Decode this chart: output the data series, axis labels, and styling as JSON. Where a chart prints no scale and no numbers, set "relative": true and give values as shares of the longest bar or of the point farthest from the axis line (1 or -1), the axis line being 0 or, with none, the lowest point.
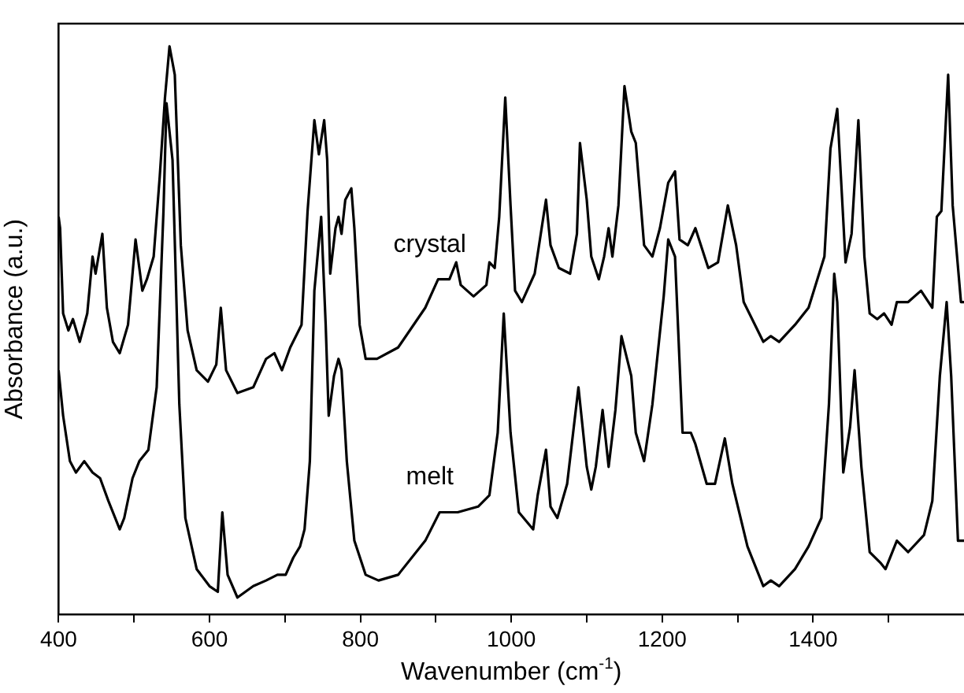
{
  "chart_data": {
    "type": "line",
    "relative": true,
    "xlabel": "Wavenumber (cm$^{-1}$)",
    "ylabel": "Absorbance (a.u.)",
    "xlim": [
      400,
      1600
    ],
    "xticks": [
      400,
      {
        "value": 500,
        "label": null
      },
      600,
      {
        "value": 700,
        "label": null
      },
      800,
      {
        "value": 900,
        "label": null
      },
      1000,
      {
        "value": 1100,
        "label": null
      },
      1200,
      {
        "value": 1300,
        "label": null
      },
      1400,
      {
        "value": 1500,
        "label": null
      }
    ],
    "grid": false,
    "legend": false,
    "marker": "none",
    "line_style": "solid",
    "series": [
      {
        "name": "crystal",
        "color": "#000000",
        "x": [
          400,
          402,
          406,
          413,
          419,
          428,
          438,
          445,
          449,
          458,
          464,
          472,
          481,
          492,
          502,
          511,
          517,
          526,
          534,
          541,
          547,
          554,
          562,
          571,
          583,
          598,
          609,
          615,
          622,
          637,
          658,
          675,
          686,
          696,
          707,
          722,
          730,
          739,
          745,
          752,
          756,
          760,
          767,
          771,
          775,
          780,
          788,
          792,
          799,
          807,
          822,
          850,
          886,
          903,
          912,
          918,
          927,
          933,
          950,
          967,
          971,
          978,
          984,
          992,
          999,
          1005,
          1014,
          1031,
          1046,
          1052,
          1063,
          1078,
          1087,
          1091,
          1100,
          1106,
          1116,
          1123,
          1129,
          1134,
          1142,
          1150,
          1159,
          1165,
          1176,
          1187,
          1197,
          1208,
          1217,
          1223,
          1234,
          1244,
          1261,
          1274,
          1287,
          1298,
          1308,
          1334,
          1344,
          1355,
          1376,
          1394,
          1415,
          1423,
          1432,
          1443,
          1451,
          1460,
          1468,
          1475,
          1485,
          1494,
          1504,
          1511,
          1526,
          1543,
          1558,
          1564,
          1570,
          1579,
          1585,
          1596,
          1600
        ],
        "values": [
          0.7,
          0.68,
          0.53,
          0.5,
          0.52,
          0.48,
          0.53,
          0.63,
          0.6,
          0.67,
          0.54,
          0.48,
          0.46,
          0.51,
          0.66,
          0.57,
          0.59,
          0.63,
          0.77,
          0.91,
          1,
          0.95,
          0.65,
          0.5,
          0.43,
          0.41,
          0.44,
          0.54,
          0.43,
          0.39,
          0.4,
          0.45,
          0.46,
          0.43,
          0.47,
          0.51,
          0.71,
          0.87,
          0.81,
          0.87,
          0.8,
          0.6,
          0.68,
          0.7,
          0.67,
          0.73,
          0.75,
          0.68,
          0.51,
          0.45,
          0.45,
          0.47,
          0.54,
          0.59,
          0.59,
          0.59,
          0.62,
          0.58,
          0.56,
          0.58,
          0.62,
          0.61,
          0.7,
          0.91,
          0.72,
          0.57,
          0.55,
          0.6,
          0.73,
          0.65,
          0.61,
          0.6,
          0.67,
          0.83,
          0.73,
          0.63,
          0.59,
          0.63,
          0.68,
          0.63,
          0.72,
          0.93,
          0.85,
          0.83,
          0.65,
          0.63,
          0.68,
          0.76,
          0.78,
          0.66,
          0.65,
          0.68,
          0.61,
          0.62,
          0.72,
          0.65,
          0.55,
          0.48,
          0.49,
          0.48,
          0.51,
          0.54,
          0.63,
          0.82,
          0.89,
          0.62,
          0.67,
          0.87,
          0.63,
          0.53,
          0.52,
          0.53,
          0.51,
          0.55,
          0.55,
          0.57,
          0.54,
          0.7,
          0.71,
          0.95,
          0.72,
          0.55,
          0.55
        ]
      },
      {
        "name": "melt",
        "color": "#000000",
        "x": [
          400,
          406,
          415,
          423,
          434,
          445,
          455,
          466,
          481,
          487,
          498,
          507,
          519,
          530,
          539,
          543,
          551,
          560,
          568,
          583,
          600,
          611,
          617,
          624,
          637,
          658,
          675,
          690,
          701,
          711,
          720,
          726,
          733,
          739,
          748,
          754,
          758,
          765,
          771,
          775,
          782,
          792,
          807,
          824,
          850,
          886,
          905,
          929,
          956,
          971,
          982,
          990,
          999,
          1010,
          1029,
          1035,
          1046,
          1052,
          1061,
          1074,
          1089,
          1100,
          1106,
          1112,
          1121,
          1129,
          1138,
          1146,
          1159,
          1165,
          1176,
          1187,
          1202,
          1208,
          1217,
          1227,
          1238,
          1244,
          1259,
          1270,
          1283,
          1293,
          1313,
          1334,
          1344,
          1355,
          1376,
          1394,
          1411,
          1421,
          1428,
          1432,
          1440,
          1449,
          1455,
          1464,
          1475,
          1490,
          1496,
          1511,
          1526,
          1547,
          1558,
          1568,
          1577,
          1583,
          1592,
          1600
        ],
        "values": [
          0.43,
          0.35,
          0.27,
          0.25,
          0.27,
          0.25,
          0.24,
          0.2,
          0.15,
          0.17,
          0.24,
          0.27,
          0.29,
          0.4,
          0.71,
          0.9,
          0.8,
          0.37,
          0.17,
          0.08,
          0.05,
          0.04,
          0.18,
          0.07,
          0.03,
          0.05,
          0.06,
          0.07,
          0.07,
          0.1,
          0.12,
          0.15,
          0.27,
          0.57,
          0.7,
          0.51,
          0.35,
          0.42,
          0.45,
          0.43,
          0.27,
          0.13,
          0.07,
          0.06,
          0.07,
          0.13,
          0.18,
          0.18,
          0.19,
          0.21,
          0.32,
          0.53,
          0.32,
          0.18,
          0.15,
          0.21,
          0.29,
          0.19,
          0.17,
          0.23,
          0.4,
          0.26,
          0.22,
          0.26,
          0.36,
          0.26,
          0.36,
          0.49,
          0.42,
          0.32,
          0.27,
          0.37,
          0.56,
          0.66,
          0.63,
          0.32,
          0.32,
          0.3,
          0.23,
          0.23,
          0.31,
          0.23,
          0.12,
          0.05,
          0.06,
          0.05,
          0.08,
          0.12,
          0.17,
          0.37,
          0.6,
          0.55,
          0.25,
          0.33,
          0.43,
          0.26,
          0.11,
          0.09,
          0.08,
          0.13,
          0.11,
          0.14,
          0.2,
          0.42,
          0.55,
          0.42,
          0.13,
          0.13
        ]
      }
    ]
  }
}
